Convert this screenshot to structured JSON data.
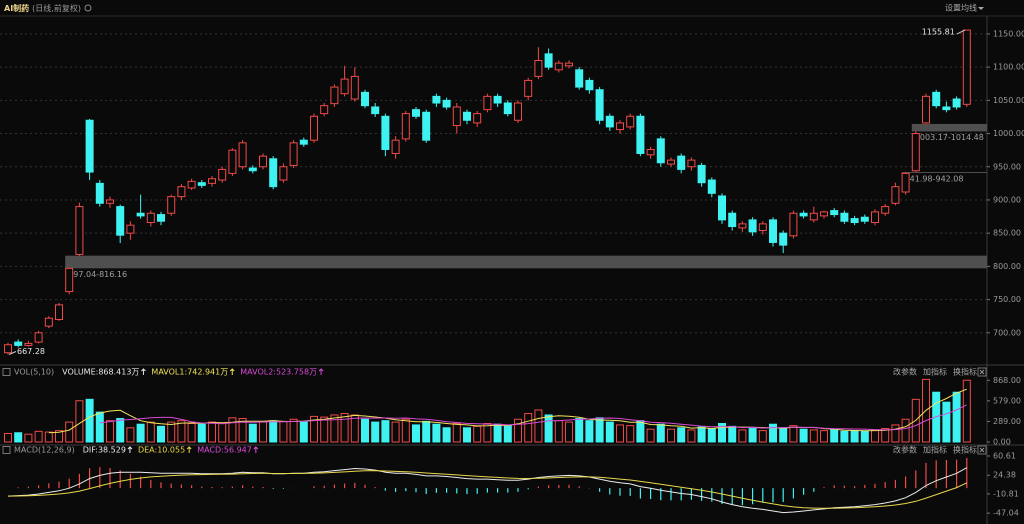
{
  "header": {
    "title": "AI制药",
    "subtitle": "(日线,前复权)",
    "menu": "设置均线"
  },
  "chart_data": [
    {
      "type": "candlestick",
      "open": [
        670,
        686,
        681,
        686,
        710,
        720,
        762,
        818,
        1020,
        925,
        895,
        890,
        850,
        880,
        866,
        878,
        880,
        905,
        918,
        926,
        925,
        930,
        940,
        950,
        948,
        950,
        962,
        930,
        952,
        990,
        990,
        1030,
        1045,
        1060,
        1052,
        1062,
        1040,
        1026,
        970,
        992,
        1036,
        1032,
        1056,
        1050,
        1012,
        1032,
        1016,
        1036,
        1056,
        1046,
        1020,
        1056,
        1086,
        1120,
        1096,
        1102,
        1096,
        1080,
        1066,
        1026,
        1006,
        1010,
        1026,
        968,
        992,
        954,
        966,
        950,
        952,
        930,
        906,
        880,
        858,
        870,
        854,
        870,
        850,
        846,
        880,
        870,
        876,
        884,
        880,
        872,
        874,
        866,
        880,
        895,
        912,
        944,
        1016,
        1062,
        1040,
        1052,
        1044
      ],
      "high": [
        685,
        690,
        688,
        703,
        725,
        745,
        797.04,
        896,
        1022,
        930,
        905,
        893,
        868,
        908,
        884,
        882,
        908,
        924,
        932,
        930,
        936,
        950,
        978,
        990,
        952,
        970,
        966,
        955,
        990,
        994,
        1030,
        1046,
        1074,
        1102,
        1100,
        1066,
        1046,
        1030,
        996,
        1034,
        1040,
        1036,
        1060,
        1054,
        1046,
        1036,
        1034,
        1060,
        1060,
        1050,
        1050,
        1084,
        1130,
        1128,
        1110,
        1110,
        1100,
        1084,
        1070,
        1030,
        1020,
        1030,
        1030,
        980,
        996,
        964,
        970,
        964,
        956,
        934,
        910,
        884,
        868,
        874,
        868,
        874,
        854,
        884,
        884,
        890,
        884,
        888,
        884,
        876,
        878,
        886,
        894,
        926,
        941.98,
        1003.17,
        1060,
        1066,
        1048,
        1056,
        1155.81
      ],
      "low": [
        667.28,
        678,
        679,
        684,
        707,
        718,
        758,
        816.16,
        930,
        890,
        888,
        835,
        840,
        872,
        860,
        862,
        876,
        900,
        915,
        918,
        920,
        926,
        936,
        946,
        940,
        946,
        916,
        926,
        948,
        980,
        986,
        1026,
        1040,
        1056,
        1048,
        1038,
        1025,
        966,
        962,
        988,
        1022,
        986,
        1040,
        1036,
        1000,
        1014,
        1010,
        1032,
        1040,
        1026,
        1016,
        1050,
        1082,
        1096,
        1092,
        1098,
        1066,
        1060,
        1014,
        1004,
        1000,
        1006,
        966,
        962,
        950,
        950,
        940,
        944,
        920,
        904,
        864,
        854,
        852,
        846,
        848,
        830,
        820,
        842,
        872,
        866,
        872,
        874,
        864,
        862,
        864,
        862,
        876,
        892,
        908,
        942.08,
        1014.48,
        1038,
        1032,
        1036,
        1040
      ],
      "close": [
        682,
        681,
        684,
        700,
        722,
        742,
        797,
        890,
        942,
        895,
        900,
        847,
        862,
        876,
        880,
        868,
        905,
        920,
        928,
        922,
        932,
        946,
        975,
        986,
        944,
        966,
        920,
        950,
        986,
        984,
        1026,
        1042,
        1070,
        1082,
        1086,
        1042,
        1030,
        976,
        990,
        1030,
        1026,
        990,
        1046,
        1040,
        1040,
        1020,
        1030,
        1056,
        1046,
        1030,
        1046,
        1080,
        1110,
        1100,
        1106,
        1106,
        1070,
        1066,
        1020,
        1010,
        1016,
        1026,
        970,
        976,
        956,
        960,
        946,
        960,
        926,
        910,
        870,
        860,
        864,
        852,
        864,
        836,
        832,
        880,
        876,
        880,
        882,
        878,
        868,
        866,
        868,
        882,
        890,
        920,
        940,
        1000,
        1056,
        1042,
        1036,
        1040,
        1155.81
      ],
      "ylim": [
        656,
        1177
      ],
      "yticks": [
        {
          "value": 700,
          "label": "700.00"
        },
        {
          "value": 750,
          "label": "750.00"
        },
        {
          "value": 800,
          "label": "800.00"
        },
        {
          "value": 850,
          "label": "850.00"
        },
        {
          "value": 900,
          "label": "900.00"
        },
        {
          "value": 950,
          "label": "950.00"
        },
        {
          "value": 1000,
          "label": "1000.00"
        },
        {
          "value": 1050,
          "label": "1050.00"
        },
        {
          "value": 1100,
          "label": "1100.00"
        },
        {
          "value": 1150,
          "label": "1150.00"
        }
      ],
      "grid": true,
      "up_color": "#f04a48",
      "down_color": "#3ff2f2",
      "zone_color": "#4f4f4f",
      "zones": [
        {
          "label": "797.04-816.16",
          "low": 797.04,
          "high": 816.16
        },
        {
          "label": "1003.17-1014.48",
          "low": 1003.17,
          "high": 1014.48
        },
        {
          "label": "941.98-942.08",
          "low": 941.98,
          "high": 942.08
        }
      ]
    },
    {
      "type": "volume",
      "title": "VOL(5,10)",
      "label": "VOLUME:868.413万",
      "label_color": "#e6e6e6",
      "values": [
        120,
        130,
        110,
        150,
        140,
        160,
        280,
        580,
        600,
        420,
        300,
        330,
        200,
        250,
        280,
        220,
        280,
        300,
        260,
        250,
        280,
        260,
        340,
        330,
        250,
        280,
        300,
        290,
        320,
        280,
        360,
        350,
        380,
        400,
        380,
        320,
        280,
        300,
        280,
        320,
        240,
        290,
        250,
        200,
        260,
        200,
        220,
        260,
        250,
        230,
        320,
        400,
        450,
        380,
        300,
        280,
        330,
        300,
        340,
        280,
        240,
        230,
        300,
        180,
        250,
        180,
        200,
        170,
        210,
        190,
        260,
        220,
        170,
        200,
        160,
        250,
        200,
        230,
        180,
        170,
        160,
        170,
        150,
        160,
        150,
        170,
        190,
        240,
        320,
        600,
        880,
        700,
        560,
        700,
        868.413
      ],
      "series": [
        {
          "name": "MAVOL1:742.941万",
          "color": "#f2e45a",
          "values": [
            null,
            null,
            null,
            null,
            130,
            138,
            168,
            262,
            352,
            408,
            436,
            446,
            370,
            300,
            272,
            256,
            246,
            266,
            268,
            262,
            274,
            270,
            278,
            292,
            292,
            292,
            300,
            290,
            288,
            294,
            310,
            320,
            338,
            354,
            374,
            366,
            352,
            336,
            312,
            300,
            284,
            286,
            276,
            260,
            248,
            240,
            226,
            228,
            238,
            232,
            256,
            292,
            330,
            356,
            370,
            362,
            348,
            318,
            310,
            306,
            298,
            278,
            278,
            246,
            240,
            228,
            222,
            196,
            202,
            190,
            206,
            210,
            210,
            208,
            202,
            200,
            196,
            208,
            204,
            206,
            188,
            182,
            166,
            162,
            158,
            160,
            164,
            182,
            214,
            304,
            446,
            548,
            612,
            688,
            742.941
          ]
        },
        {
          "name": "MAVOL2:523.758万",
          "color": "#d84ad8",
          "values": [
            null,
            null,
            null,
            null,
            null,
            null,
            null,
            null,
            null,
            269,
            287,
            307,
            316,
            326,
            340,
            346,
            346,
            318,
            284,
            267,
            265,
            258,
            272,
            280,
            277,
            283,
            285,
            284,
            290,
            293,
            301,
            310,
            314,
            321,
            334,
            338,
            336,
            337,
            333,
            337,
            325,
            319,
            306,
            286,
            274,
            262,
            256,
            252,
            249,
            240,
            248,
            259,
            279,
            297,
            301,
            309,
            320,
            324,
            333,
            338,
            330,
            313,
            298,
            278,
            273,
            263,
            250,
            237,
            224,
            215,
            217,
            216,
            203,
            205,
            196,
            203,
            203,
            209,
            206,
            204,
            194,
            189,
            187,
            183,
            182,
            174,
            173,
            174,
            188,
            231,
            303,
            356,
            397,
            451,
            523.758
          ]
        }
      ],
      "ylim": [
        0,
        900
      ],
      "yticks": [
        {
          "value": 0,
          "label": "0.00"
        },
        {
          "value": 289,
          "label": "289.00"
        },
        {
          "value": 579,
          "label": "579.00"
        },
        {
          "value": 868,
          "label": "868.00"
        }
      ],
      "grid": false,
      "buttons": [
        "改参数",
        "加指标",
        "换指标"
      ]
    },
    {
      "type": "macd",
      "title": "MACD(12,26,9)",
      "label": "MACD:56.947",
      "label_color": "#e04ae0",
      "values": [
        0,
        1.6,
        2.8,
        5.4,
        9.2,
        12.2,
        17.8,
        27,
        37.6,
        39.6,
        38.2,
        33.8,
        27,
        21.6,
        15.6,
        11,
        8.8,
        7,
        5.6,
        2.8,
        2.2,
        1.8,
        3,
        5.6,
        2.8,
        2.2,
        -1.4,
        -1.2,
        0.6,
        0.4,
        3.6,
        4.4,
        6.8,
        8.6,
        10,
        6.4,
        2,
        -4.8,
        -7,
        -5.6,
        -7.6,
        -11,
        -8.8,
        -8.6,
        -10,
        -11.2,
        -10.6,
        -8.4,
        -8.4,
        -8.4,
        -6.8,
        -2.2,
        3,
        5.6,
        6,
        6.4,
        3.6,
        -0.4,
        -6.8,
        -11.8,
        -14.2,
        -14.6,
        -19.6,
        -20.4,
        -22.8,
        -23,
        -23.2,
        -21.8,
        -23.8,
        -25.4,
        -30,
        -32,
        -32,
        -30.4,
        -27.6,
        -26.8,
        -26.2,
        -19.4,
        -12.4,
        -6.8,
        1.8,
        5.4,
        4.8,
        3.8,
        6.2,
        8.2,
        11.4,
        15.6,
        22,
        33.6,
        47.6,
        52.4,
        53.2,
        53.8,
        56.947
      ],
      "series": [
        {
          "name": "DIF:38.529",
          "color": "#ececec",
          "values": [
            -15,
            -14,
            -13,
            -11,
            -8,
            -5,
            0,
            8,
            18,
            24,
            28,
            30,
            30,
            30,
            29,
            28,
            28,
            28,
            28,
            27,
            27,
            27,
            28,
            30,
            29,
            29,
            27,
            27,
            28,
            28,
            30,
            31,
            33,
            35,
            37,
            36,
            34,
            30,
            28,
            28,
            26,
            23,
            23,
            22,
            20,
            18,
            17,
            17,
            16,
            15,
            15,
            17,
            20,
            22,
            23,
            24,
            23,
            21,
            17,
            13,
            10,
            8,
            3,
            0,
            -4,
            -7,
            -10,
            -12,
            -16,
            -20,
            -26,
            -31,
            -35,
            -38,
            -40,
            -43,
            -46,
            -45,
            -43,
            -41,
            -39,
            -37,
            -36,
            -35,
            -33,
            -31,
            -28,
            -24,
            -18,
            -8,
            5,
            14,
            21,
            28,
            38.529
          ]
        },
        {
          "name": "DEA:10.055",
          "color": "#e8d84a",
          "values": [
            -15,
            -14.8,
            -14.4,
            -13.7,
            -12.6,
            -11.1,
            -8.9,
            -5.5,
            -0.8,
            4.2,
            8.9,
            13.1,
            16.5,
            19.2,
            21.2,
            22.5,
            23.6,
            24.5,
            25.2,
            25.6,
            25.9,
            26.1,
            26.5,
            27.2,
            27.6,
            27.9,
            27.7,
            27.6,
            27.7,
            27.8,
            28.2,
            28.8,
            29.6,
            30.7,
            32,
            32.8,
            33,
            32.4,
            31.5,
            30.8,
            29.8,
            28.5,
            27.4,
            26.3,
            25,
            23.6,
            22.3,
            21.2,
            20.2,
            19.2,
            18.4,
            18.1,
            18.5,
            19.2,
            20,
            20.8,
            21.2,
            21.2,
            20.4,
            18.9,
            17.1,
            15.3,
            12.8,
            10.2,
            7.4,
            4.5,
            1.6,
            -1.1,
            -4.1,
            -7.3,
            -11,
            -15,
            -19,
            -22.8,
            -26.2,
            -29.6,
            -32.9,
            -35.3,
            -36.8,
            -37.6,
            -37.9,
            -37.7,
            -37.4,
            -36.9,
            -36.1,
            -35.1,
            -33.7,
            -31.8,
            -29,
            -24.8,
            -18.8,
            -12.2,
            -5.6,
            1.1,
            10.055
          ]
        }
      ],
      "ylim": [
        -60,
        70
      ],
      "yticks": [
        -47.04,
        -10.81,
        24.38,
        60.61
      ],
      "grid": false,
      "up_color": "#f04a48",
      "down_color": "#3ff2f2",
      "buttons": [
        "改参数",
        "加指标",
        "换指标"
      ]
    }
  ]
}
